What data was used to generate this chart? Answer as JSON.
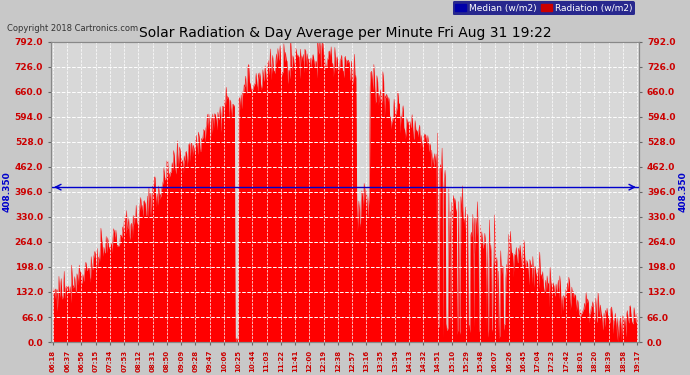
{
  "title": "Solar Radiation & Day Average per Minute Fri Aug 31 19:22",
  "copyright": "Copyright 2018 Cartronics.com",
  "legend_median_label": "Median (w/m2)",
  "legend_radiation_label": "Radiation (w/m2)",
  "median_value": 408.35,
  "median_label": "408.350",
  "ylim": [
    0.0,
    792.0
  ],
  "yticks": [
    0.0,
    66.0,
    132.0,
    198.0,
    264.0,
    330.0,
    396.0,
    462.0,
    528.0,
    594.0,
    660.0,
    726.0,
    792.0
  ],
  "background_color": "#c8c8c8",
  "plot_bg_color": "#d8d8d8",
  "fill_color": "#ff0000",
  "median_line_color": "#0000cc",
  "grid_color": "#aaaaaa",
  "title_color": "#000000",
  "tick_label_color": "#cc0000",
  "xtick_labels": [
    "06:18",
    "06:37",
    "06:56",
    "07:15",
    "07:34",
    "07:53",
    "08:12",
    "08:31",
    "08:50",
    "09:09",
    "09:28",
    "09:47",
    "10:06",
    "10:25",
    "10:44",
    "11:03",
    "11:22",
    "11:41",
    "12:00",
    "12:19",
    "12:38",
    "12:57",
    "13:16",
    "13:35",
    "13:54",
    "14:13",
    "14:32",
    "14:51",
    "15:10",
    "15:29",
    "15:48",
    "16:07",
    "16:26",
    "16:45",
    "17:04",
    "17:23",
    "17:42",
    "18:01",
    "18:20",
    "18:39",
    "18:58",
    "19:17"
  ],
  "figsize": [
    6.9,
    3.75
  ],
  "dpi": 100
}
